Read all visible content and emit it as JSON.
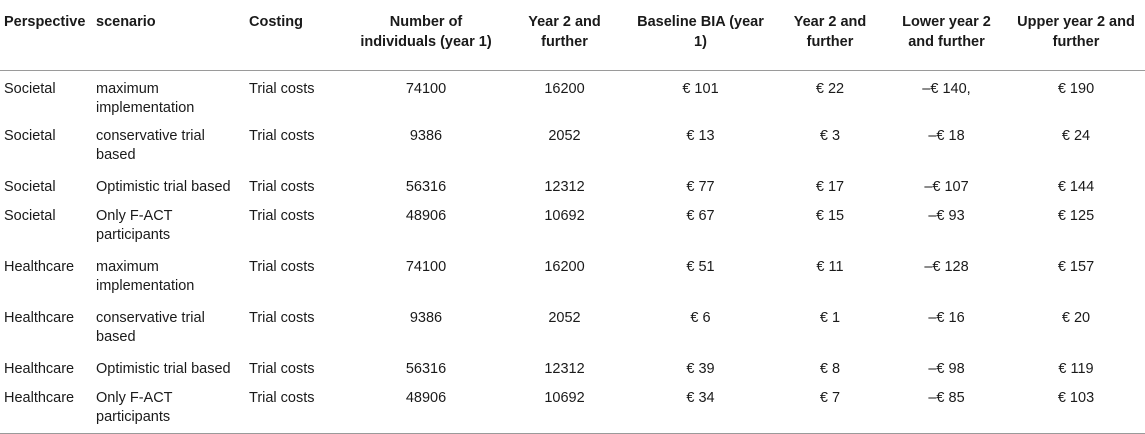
{
  "table": {
    "headers": [
      "Perspective",
      "scenario",
      "Costing",
      "Number of individuals (year 1)",
      "Year 2 and further",
      "Baseline BIA (year 1)",
      "Year 2 and further",
      "Lower year 2 and further",
      "Upper year 2 and further"
    ],
    "rows": [
      [
        "Societal",
        "maximum implementation",
        "Trial costs",
        "74100",
        "16200",
        "€ 101",
        "€ 22",
        "–€ 140,",
        "€ 190"
      ],
      [
        "Societal",
        "conservative trial based",
        "Trial costs",
        "9386",
        "2052",
        "€ 13",
        "€ 3",
        "–€ 18",
        "€ 24"
      ],
      [
        "Societal",
        "Optimistic trial based",
        "Trial costs",
        "56316",
        "12312",
        "€ 77",
        "€ 17",
        "–€ 107",
        "€ 144"
      ],
      [
        "Societal",
        "Only F-ACT participants",
        "Trial costs",
        "48906",
        "10692",
        "€ 67",
        "€ 15",
        "–€ 93",
        "€ 125"
      ],
      [
        "Healthcare",
        "maximum implementation",
        "Trial costs",
        "74100",
        "16200",
        "€ 51",
        "€ 11",
        "–€ 128",
        "€ 157"
      ],
      [
        "Healthcare",
        "conservative trial based",
        "Trial costs",
        "9386",
        "2052",
        "€ 6",
        "€ 1",
        "–€ 16",
        "€ 20"
      ],
      [
        "Healthcare",
        "Optimistic trial based",
        "Trial costs",
        "56316",
        "12312",
        "€ 39",
        "€ 8",
        "–€ 98",
        "€ 119"
      ],
      [
        "Healthcare",
        "Only F-ACT participants",
        "Trial costs",
        "48906",
        "10692",
        "€ 34",
        "€ 7",
        "–€ 85",
        "€ 103"
      ]
    ]
  }
}
